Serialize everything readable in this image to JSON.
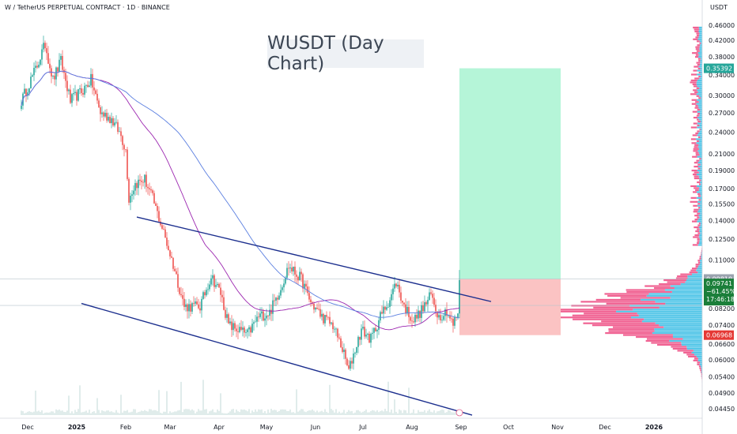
{
  "header": {
    "symbol_line": "W / TetherUS PERPETUAL CONTRACT · 1D · BINANCE",
    "currency": "USDT"
  },
  "chart_data": {
    "type": "candlestick",
    "title": "WUSDT (Day Chart)",
    "y_scale": "log",
    "ylim": [
      0.0425,
      0.49
    ],
    "y_ticks": [
      "0.46000",
      "0.42000",
      "0.38000",
      "0.34000",
      "0.30000",
      "0.27000",
      "0.24000",
      "0.21000",
      "0.19000",
      "0.17000",
      "0.15500",
      "0.14000",
      "0.12500",
      "0.11000",
      "0.09741",
      "0.08200",
      "0.07400",
      "0.06600",
      "0.06000",
      "0.05400",
      "0.04900",
      "0.04450"
    ],
    "x_ticks": [
      "Dec",
      "2025",
      "Feb",
      "Mar",
      "Apr",
      "May",
      "Jun",
      "Jul",
      "Aug",
      "Sep",
      "Oct",
      "Nov",
      "Dec",
      "2026"
    ],
    "anchors": [
      {
        "date": "2024-11-27",
        "close": 0.29
      },
      {
        "date": "2024-12-07",
        "close": 0.36
      },
      {
        "date": "2024-12-12",
        "close": 0.41
      },
      {
        "date": "2024-12-17",
        "close": 0.33
      },
      {
        "date": "2024-12-22",
        "close": 0.37
      },
      {
        "date": "2024-12-28",
        "close": 0.29
      },
      {
        "date": "2025-01-05",
        "close": 0.31
      },
      {
        "date": "2025-01-10",
        "close": 0.33
      },
      {
        "date": "2025-01-16",
        "close": 0.27
      },
      {
        "date": "2025-01-23",
        "close": 0.26
      },
      {
        "date": "2025-01-29",
        "close": 0.235
      },
      {
        "date": "2025-02-01",
        "close": 0.215
      },
      {
        "date": "2025-02-03",
        "close": 0.16
      },
      {
        "date": "2025-02-07",
        "close": 0.175
      },
      {
        "date": "2025-02-13",
        "close": 0.18
      },
      {
        "date": "2025-02-18",
        "close": 0.16
      },
      {
        "date": "2025-02-25",
        "close": 0.13
      },
      {
        "date": "2025-03-03",
        "close": 0.107
      },
      {
        "date": "2025-03-10",
        "close": 0.083
      },
      {
        "date": "2025-03-20",
        "close": 0.083
      },
      {
        "date": "2025-03-27",
        "close": 0.1
      },
      {
        "date": "2025-04-02",
        "close": 0.09
      },
      {
        "date": "2025-04-07",
        "close": 0.074
      },
      {
        "date": "2025-04-13",
        "close": 0.072
      },
      {
        "date": "2025-04-19",
        "close": 0.07
      },
      {
        "date": "2025-04-26",
        "close": 0.078
      },
      {
        "date": "2025-05-03",
        "close": 0.08
      },
      {
        "date": "2025-05-10",
        "close": 0.093
      },
      {
        "date": "2025-05-15",
        "close": 0.106
      },
      {
        "date": "2025-05-23",
        "close": 0.098
      },
      {
        "date": "2025-05-29",
        "close": 0.085
      },
      {
        "date": "2025-06-05",
        "close": 0.078
      },
      {
        "date": "2025-06-12",
        "close": 0.074
      },
      {
        "date": "2025-06-18",
        "close": 0.064
      },
      {
        "date": "2025-06-22",
        "close": 0.056
      },
      {
        "date": "2025-06-25",
        "close": 0.062
      },
      {
        "date": "2025-06-30",
        "close": 0.072
      },
      {
        "date": "2025-07-06",
        "close": 0.068
      },
      {
        "date": "2025-07-12",
        "close": 0.078
      },
      {
        "date": "2025-07-18",
        "close": 0.087
      },
      {
        "date": "2025-07-22",
        "close": 0.096
      },
      {
        "date": "2025-07-27",
        "close": 0.083
      },
      {
        "date": "2025-08-02",
        "close": 0.076
      },
      {
        "date": "2025-08-08",
        "close": 0.082
      },
      {
        "date": "2025-08-13",
        "close": 0.089
      },
      {
        "date": "2025-08-18",
        "close": 0.078
      },
      {
        "date": "2025-08-23",
        "close": 0.081
      },
      {
        "date": "2025-08-27",
        "close": 0.074
      },
      {
        "date": "2025-08-30",
        "close": 0.08
      },
      {
        "date": "2025-08-31",
        "close": 0.09741
      }
    ],
    "trendlines": [
      {
        "name": "upper channel",
        "from": {
          "date": "2025-02-08",
          "price": 0.143
        },
        "to": {
          "date": "2025-09-20",
          "price": 0.0855
        }
      },
      {
        "name": "lower channel",
        "from": {
          "date": "2025-01-04",
          "price": 0.0845
        },
        "to": {
          "date": "2025-09-08",
          "price": 0.0428
        }
      }
    ],
    "position": {
      "start_date": "2025-08-31",
      "end_date": "2025-11-03",
      "entry": 0.0981,
      "target": 0.35392,
      "stop": 0.06968
    },
    "horizontal_levels": [
      0.0981,
      0.0835
    ],
    "price_labels": {
      "target": "0.35392",
      "entry": "0.09810",
      "current": "0.09741",
      "change": "−61.45%",
      "countdown": "17:46:18",
      "stop": "0.06968"
    },
    "colors": {
      "up": "#26a69a",
      "down": "#ef5350",
      "ma_fast": "#9c27b0",
      "ma_slow": "#5b7fe0",
      "trend": "#1c2f8e",
      "profit": "#b5f5d8",
      "loss": "#fbc3c3",
      "vp_up": "#54c6e8",
      "vp_down": "#f06292"
    }
  }
}
